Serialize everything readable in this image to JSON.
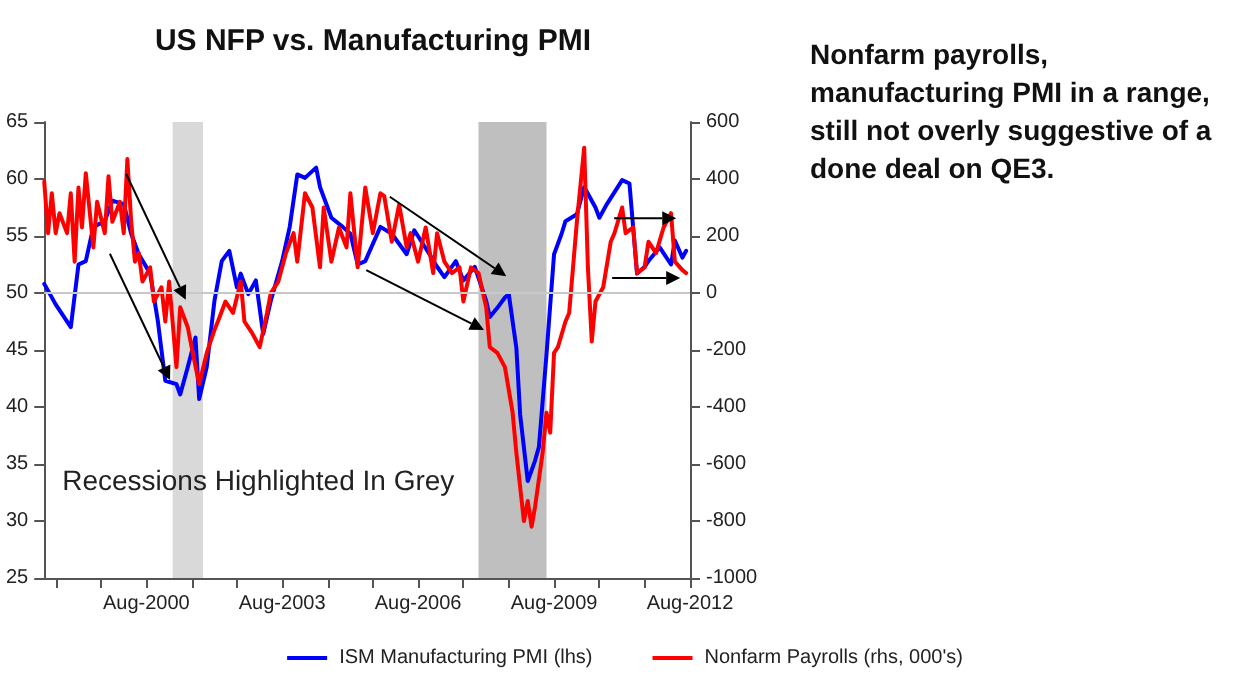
{
  "chart_data": {
    "type": "line",
    "title": "US NFP vs. Manufacturing PMI",
    "annotations": [
      "Recessions Highlighted In Grey",
      "Nonfarm payrolls, manufacturing PMI in a range, still not overly suggestive of a done deal on QE3."
    ],
    "xlim": [
      "1998-05",
      "2012-08"
    ],
    "xticks": [
      {
        "value": "1998-08",
        "label": null
      },
      {
        "value": "1999-08",
        "label": null
      },
      {
        "value": "2000-08",
        "label": "Aug-2000"
      },
      {
        "value": "2001-08",
        "label": null
      },
      {
        "value": "2002-08",
        "label": null
      },
      {
        "value": "2003-08",
        "label": "Aug-2003"
      },
      {
        "value": "2004-08",
        "label": null
      },
      {
        "value": "2005-08",
        "label": null
      },
      {
        "value": "2006-08",
        "label": "Aug-2006"
      },
      {
        "value": "2007-08",
        "label": null
      },
      {
        "value": "2008-08",
        "label": null
      },
      {
        "value": "2009-08",
        "label": "Aug-2009"
      },
      {
        "value": "2010-08",
        "label": null
      },
      {
        "value": "2011-08",
        "label": null
      },
      {
        "value": "2012-08",
        "label": "Aug-2012"
      }
    ],
    "ylim": [
      25,
      65
    ],
    "yticks": [
      25,
      30,
      35,
      40,
      45,
      50,
      55,
      60,
      65
    ],
    "y2lim": [
      -1000,
      600
    ],
    "y2ticks": [
      -1000,
      -800,
      -600,
      -400,
      -200,
      0,
      200,
      400,
      600
    ],
    "grid": false,
    "legend": "bottom",
    "marker": "none",
    "line_style": "solid",
    "ref_lines": [
      {
        "axis": "y",
        "value": 50,
        "color": "#c8c8c8"
      }
    ],
    "bands": [
      {
        "axis": "x",
        "from": "2001-03",
        "to": "2001-11",
        "color": "#d9d9d9"
      },
      {
        "axis": "x",
        "from": "2007-12",
        "to": "2009-06",
        "color": "#bfbfbf"
      }
    ],
    "series": [
      {
        "name": "ISM Manufacturing PMI (lhs)",
        "color": "#0000ff",
        "x": [
          "1998-05",
          "1998-08",
          "1998-12",
          "1999-02",
          "1999-04",
          "1999-06",
          "1999-09",
          "1999-11",
          "2000-02",
          "2000-04",
          "2000-06",
          "2000-09",
          "2000-11",
          "2001-01",
          "2001-04",
          "2001-05",
          "2001-07",
          "2001-09",
          "2001-10",
          "2001-12",
          "2002-02",
          "2002-04",
          "2002-06",
          "2002-08",
          "2002-09",
          "2002-11",
          "2003-01",
          "2003-03",
          "2003-05",
          "2003-08",
          "2003-10",
          "2003-12",
          "2004-02",
          "2004-05",
          "2004-06",
          "2004-09",
          "2004-12",
          "2005-02",
          "2005-04",
          "2005-06",
          "2005-10",
          "2006-01",
          "2006-05",
          "2006-07",
          "2006-11",
          "2007-01",
          "2007-03",
          "2007-06",
          "2007-08",
          "2007-11",
          "2008-02",
          "2008-03",
          "2008-05",
          "2008-07",
          "2008-08",
          "2008-10",
          "2008-11",
          "2009-01",
          "2009-03",
          "2009-04",
          "2009-06",
          "2009-08",
          "2009-10",
          "2009-11",
          "2010-02",
          "2010-04",
          "2010-07",
          "2010-08",
          "2010-10",
          "2011-02",
          "2011-04",
          "2011-06",
          "2011-08",
          "2011-09",
          "2011-12",
          "2012-03",
          "2012-04",
          "2012-06",
          "2012-07"
        ],
        "values": [
          50.8,
          49,
          47,
          52.5,
          52.8,
          55.8,
          56.3,
          58.1,
          57.8,
          55.2,
          53.4,
          51.7,
          47.6,
          42.3,
          42,
          41.1,
          43.5,
          46.1,
          40.7,
          43.5,
          49.3,
          52.8,
          53.7,
          50.5,
          51.7,
          49.9,
          51.1,
          46.4,
          49.3,
          52.8,
          55.8,
          60.4,
          60.1,
          61,
          59.3,
          56.6,
          55.8,
          55.2,
          52.5,
          52.8,
          55.8,
          55.2,
          53.4,
          55.5,
          53.4,
          52.3,
          51.4,
          52.8,
          51.1,
          52.3,
          49.3,
          47.9,
          48.7,
          49.6,
          49.9,
          45.2,
          39.3,
          33.5,
          35.3,
          36.5,
          44.6,
          53.4,
          55.2,
          56.3,
          56.9,
          59.3,
          57.5,
          56.6,
          57.8,
          59.9,
          59.6,
          51.7,
          52.3,
          52.8,
          54,
          52.5,
          54.6,
          53.1,
          53.7
        ]
      },
      {
        "name": "Nonfarm Payrolls (rhs, 000's)",
        "color": "#ff0000",
        "axis": "y2",
        "x": [
          "1998-05",
          "1998-06",
          "1998-07",
          "1998-08",
          "1998-09",
          "1998-11",
          "1998-12",
          "1999-01",
          "1999-02",
          "1999-03",
          "1999-04",
          "1999-06",
          "1999-07",
          "1999-09",
          "1999-10",
          "1999-11",
          "2000-01",
          "2000-02",
          "2000-03",
          "2000-04",
          "2000-05",
          "2000-06",
          "2000-07",
          "2000-09",
          "2000-10",
          "2000-12",
          "2001-01",
          "2001-02",
          "2001-04",
          "2001-05",
          "2001-07",
          "2001-08",
          "2001-10",
          "2001-12",
          "2002-02",
          "2002-03",
          "2002-05",
          "2002-07",
          "2002-09",
          "2002-10",
          "2002-12",
          "2003-02",
          "2003-04",
          "2003-05",
          "2003-07",
          "2003-09",
          "2003-11",
          "2003-12",
          "2004-02",
          "2004-04",
          "2004-06",
          "2004-07",
          "2004-09",
          "2004-11",
          "2005-01",
          "2005-02",
          "2005-04",
          "2005-06",
          "2005-08",
          "2005-10",
          "2005-11",
          "2006-01",
          "2006-03",
          "2006-05",
          "2006-06",
          "2006-08",
          "2006-10",
          "2006-12",
          "2007-01",
          "2007-03",
          "2007-05",
          "2007-07",
          "2007-08",
          "2007-10",
          "2007-12",
          "2008-02",
          "2008-03",
          "2008-05",
          "2008-07",
          "2008-09",
          "2008-10",
          "2008-12",
          "2009-01",
          "2009-02",
          "2009-03",
          "2009-05",
          "2009-06",
          "2009-07",
          "2009-08",
          "2009-09",
          "2009-11",
          "2009-12",
          "2010-02",
          "2010-04",
          "2010-05",
          "2010-06",
          "2010-07",
          "2010-09",
          "2010-11",
          "2010-12",
          "2011-02",
          "2011-03",
          "2011-05",
          "2011-06",
          "2011-08",
          "2011-09",
          "2011-11",
          "2012-01",
          "2012-03",
          "2012-04",
          "2012-06",
          "2012-07"
        ],
        "values": [
          390,
          210,
          350,
          210,
          280,
          210,
          350,
          110,
          370,
          230,
          420,
          160,
          320,
          210,
          410,
          250,
          320,
          210,
          470,
          250,
          110,
          140,
          40,
          90,
          -30,
          20,
          -100,
          40,
          -260,
          -50,
          -120,
          -190,
          -320,
          -210,
          -130,
          -100,
          -30,
          -70,
          40,
          -100,
          -140,
          -190,
          -70,
          0,
          40,
          140,
          210,
          110,
          350,
          300,
          90,
          300,
          110,
          230,
          160,
          350,
          90,
          370,
          210,
          350,
          340,
          180,
          310,
          160,
          210,
          110,
          230,
          70,
          210,
          110,
          70,
          90,
          -30,
          90,
          70,
          -50,
          -190,
          -210,
          -260,
          -420,
          -560,
          -800,
          -730,
          -820,
          -750,
          -560,
          -420,
          -490,
          -210,
          -190,
          -100,
          -70,
          250,
          510,
          90,
          -170,
          -30,
          20,
          180,
          210,
          300,
          210,
          230,
          70,
          90,
          180,
          140,
          230,
          280,
          110,
          80,
          70
        ]
      }
    ]
  }
}
